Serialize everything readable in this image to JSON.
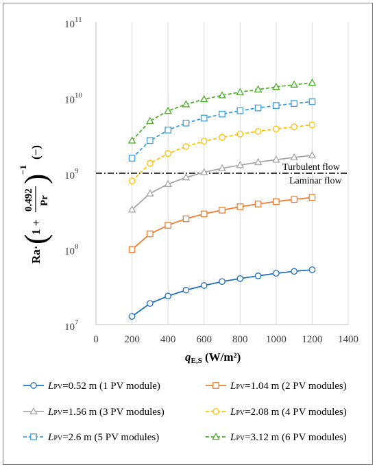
{
  "chart_data": {
    "type": "line",
    "y_scale": "log",
    "xlim": [
      0,
      1400
    ],
    "ylim": [
      10000000,
      100000000000
    ],
    "x_ticks": [
      "0",
      "200",
      "400",
      "600",
      "800",
      "1000",
      "1200",
      "1400"
    ],
    "y_ticks": [
      {
        "base": "10",
        "exp": "7"
      },
      {
        "base": "10",
        "exp": "8"
      },
      {
        "base": "10",
        "exp": "9"
      },
      {
        "base": "10",
        "exp": "10"
      },
      {
        "base": "10",
        "exp": "11"
      }
    ],
    "xlabel": {
      "main": "q",
      "sub": "E,S",
      "unit": " (W/m²)"
    },
    "ylabel": {
      "prefix": "Ra·",
      "numerator": "0.492",
      "one_plus": "1 +",
      "denominator": "Pr",
      "power": "−1",
      "unit": "(−)"
    },
    "grid": "vertical",
    "threshold": {
      "y": 1000000000,
      "style": "dash-dot",
      "label_above": "Turbulent flow",
      "label_below": "Laminar flow"
    },
    "x": [
      200,
      300,
      400,
      500,
      600,
      700,
      800,
      900,
      1000,
      1100,
      1200
    ],
    "series": [
      {
        "legend_var": "L",
        "legend_sub": "PV",
        "legend_rest": "=0.52 m (1 PV module)",
        "color": "#1f6fc0",
        "marker": "circle",
        "dash": "solid",
        "values": [
          12800000,
          19000000,
          23800000,
          28500000,
          32800000,
          37000000,
          40500000,
          44000000,
          47500000,
          50500000,
          53000000
        ]
      },
      {
        "legend_var": "L",
        "legend_sub": "PV",
        "legend_rest": "=1.04 m (2 PV modules)",
        "color": "#ed7d31",
        "marker": "square",
        "dash": "solid",
        "values": [
          98000000,
          158000000,
          205000000,
          250000000,
          290000000,
          325000000,
          360000000,
          392000000,
          422000000,
          450000000,
          478000000
        ]
      },
      {
        "legend_var": "L",
        "legend_sub": "PV",
        "legend_rest": "=1.56 m (3 PV modules)",
        "color": "#a5a5a5",
        "marker": "triangle",
        "dash": "solid",
        "values": [
          330000000,
          540000000,
          720000000,
          880000000,
          1030000000,
          1160000000,
          1280000000,
          1400000000,
          1510000000,
          1620000000,
          1720000000
        ]
      },
      {
        "legend_var": "L",
        "legend_sub": "PV",
        "legend_rest": "=2.08 m (4 PV modules)",
        "color": "#ffc000",
        "marker": "circle",
        "dash": "dashed",
        "values": [
          790000000,
          1350000000,
          1820000000,
          2250000000,
          2650000000,
          2980000000,
          3290000000,
          3580000000,
          3850000000,
          4100000000,
          4350000000
        ]
      },
      {
        "legend_var": "L",
        "legend_sub": "PV",
        "legend_rest": "=2.6 m (5 PV modules)",
        "color": "#3a9fe0",
        "marker": "square",
        "dash": "dashed",
        "values": [
          1580000000,
          2700000000,
          3720000000,
          4600000000,
          5350000000,
          6050000000,
          6700000000,
          7300000000,
          7850000000,
          8350000000,
          8850000000
        ]
      },
      {
        "legend_var": "L",
        "legend_sub": "PV",
        "legend_rest": "=3.12 m (6 PV modules)",
        "color": "#4caf2a",
        "marker": "triangle",
        "dash": "dashed",
        "values": [
          2700000000,
          4900000000,
          6650000000,
          8150000000,
          9500000000,
          10700000000,
          11800000000,
          12800000000,
          13800000000,
          14800000000,
          15700000000
        ]
      }
    ]
  }
}
